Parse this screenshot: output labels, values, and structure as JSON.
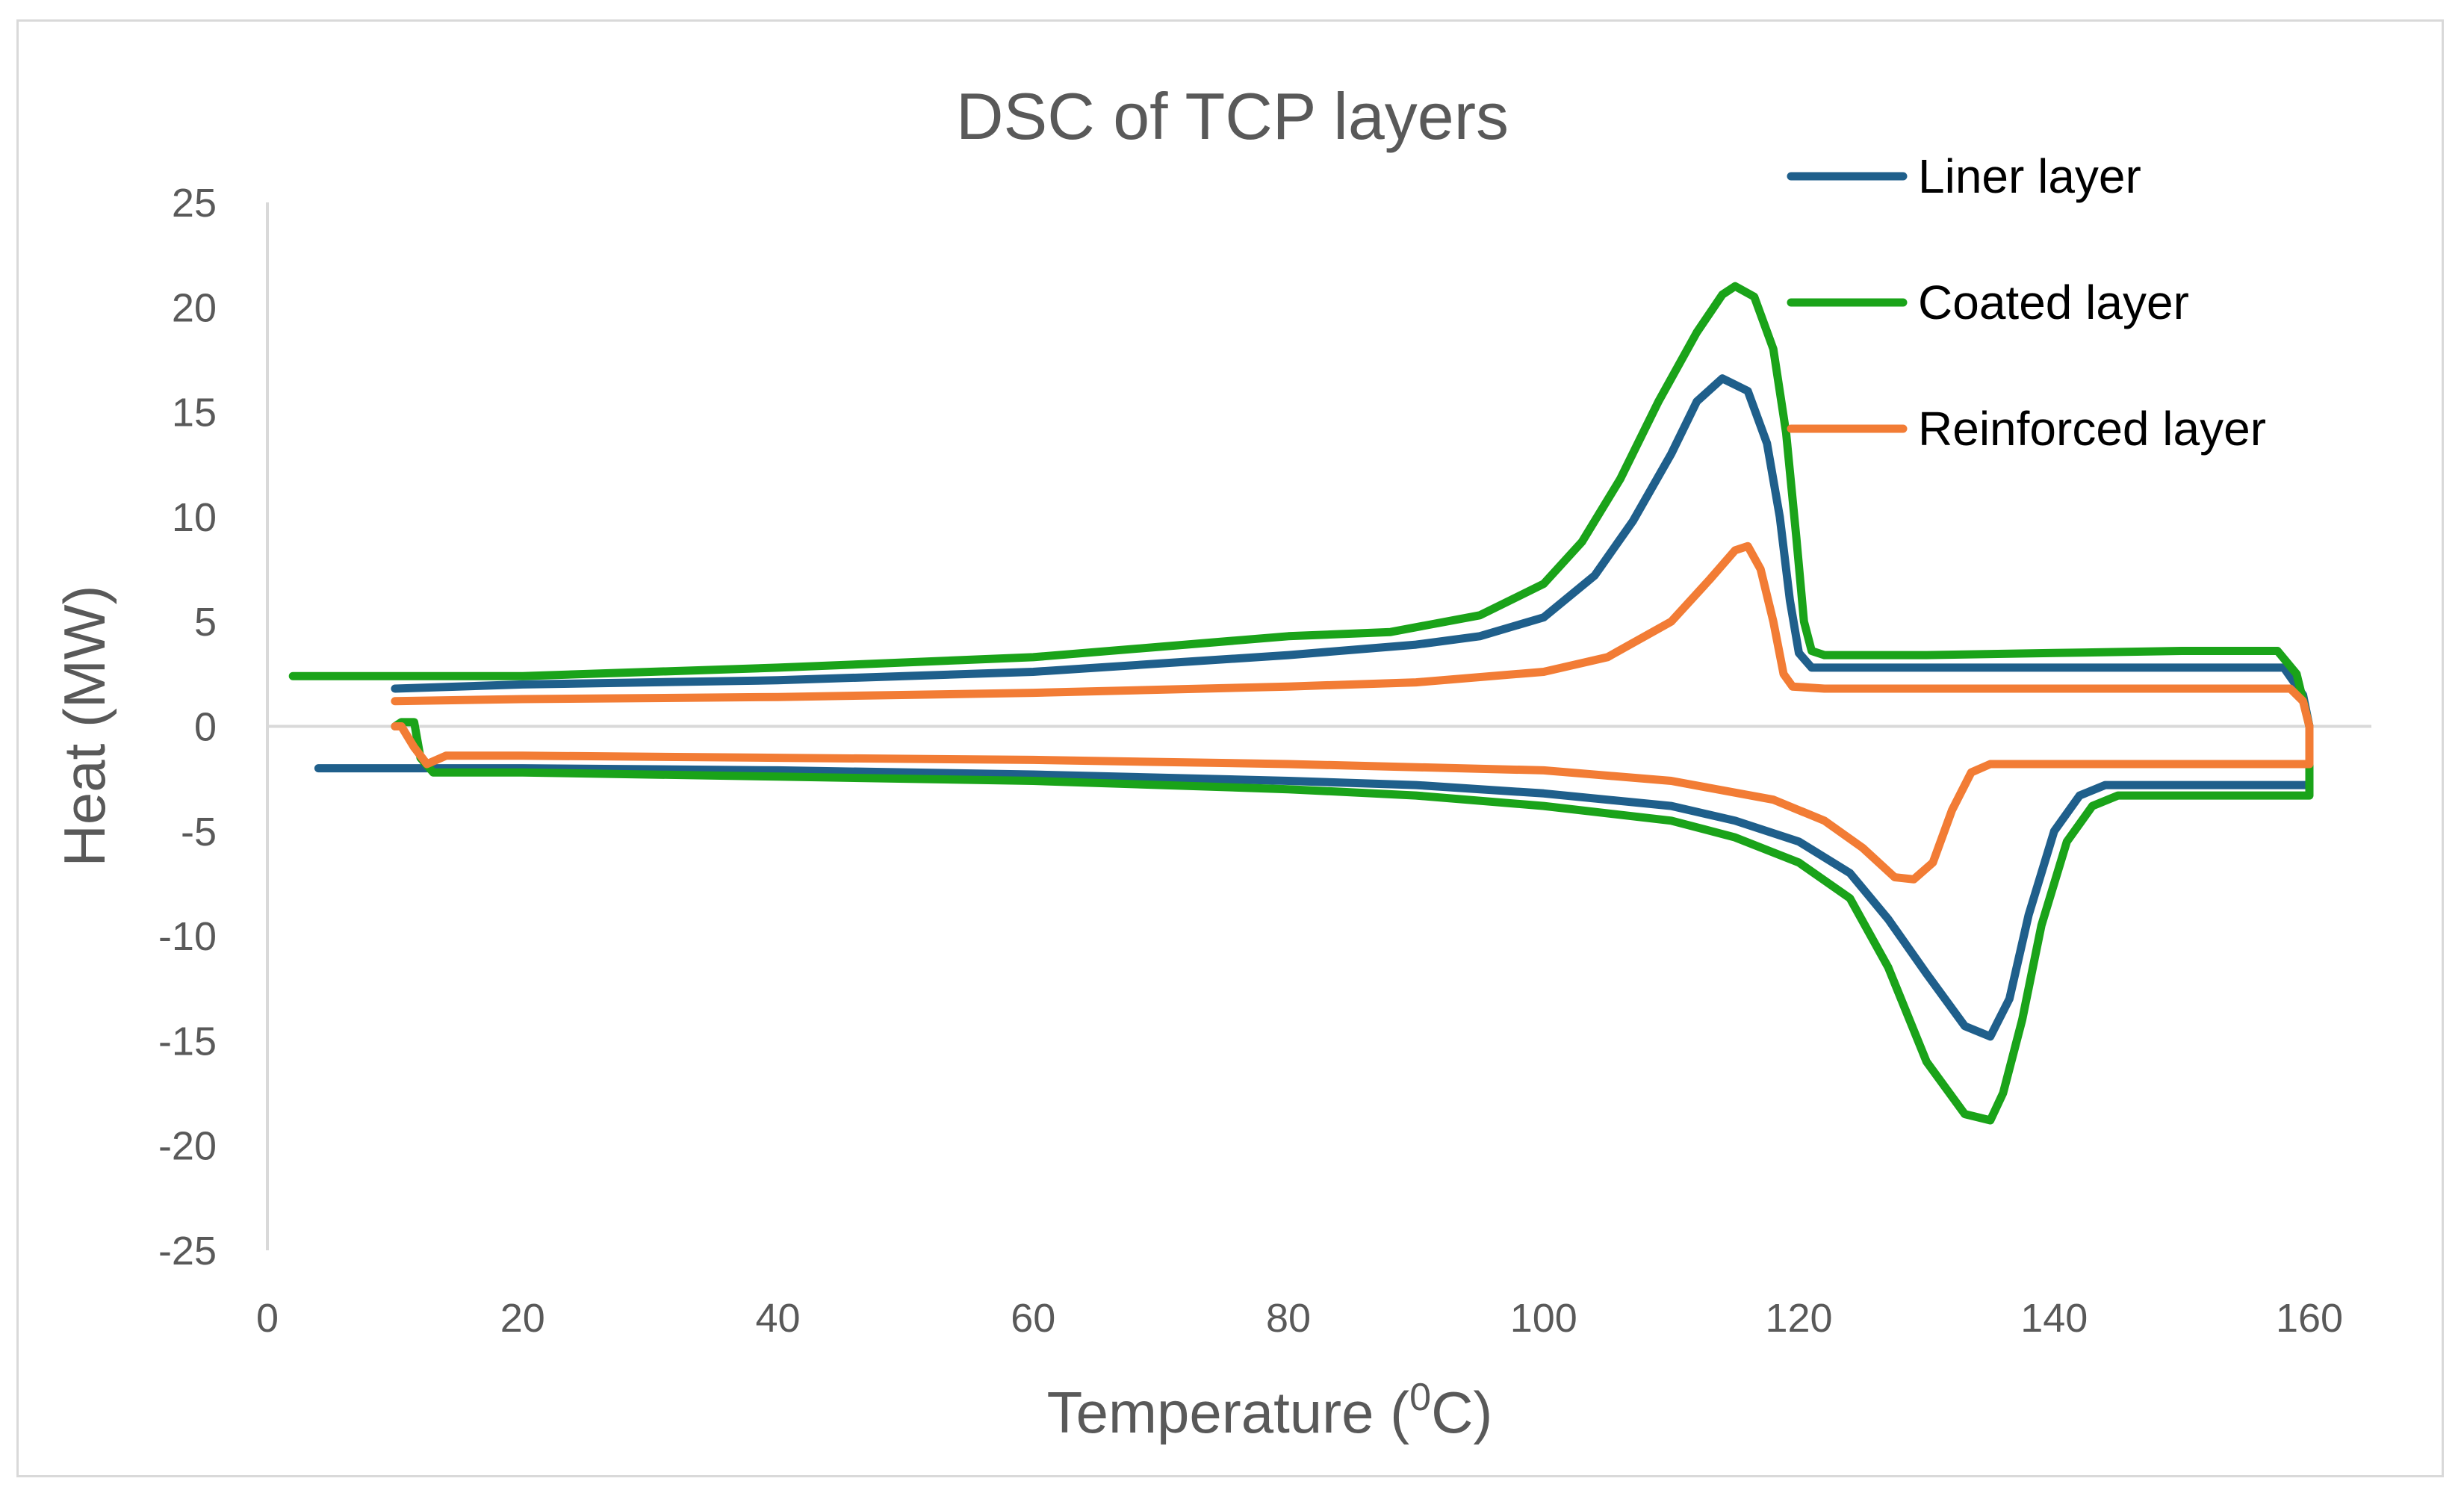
{
  "chart_data": {
    "type": "line",
    "title": "DSC of TCP layers",
    "xlabel_main": "Temperature (",
    "xlabel_sup": "0",
    "xlabel_end": "C)",
    "ylabel": "Heat (MW)",
    "xlim": [
      0,
      160
    ],
    "ylim": [
      -25,
      25
    ],
    "x_ticks": [
      0,
      20,
      40,
      60,
      80,
      100,
      120,
      140,
      160
    ],
    "y_ticks": [
      25,
      20,
      15,
      10,
      5,
      0,
      -5,
      -10,
      -15,
      -20,
      -25
    ],
    "x_tick_labels": [
      "0",
      "20",
      "40",
      "60",
      "80",
      "100",
      "120",
      "140",
      "160"
    ],
    "y_tick_labels": [
      "25",
      "20",
      "15",
      "10",
      "5",
      "0",
      "-5",
      "-10",
      "-15",
      "-20",
      "-25"
    ],
    "legend_position": "top-right",
    "series": [
      {
        "name": "Liner layer",
        "color": "#1f5f8b",
        "segments": [
          [
            [
              10,
              1.8
            ],
            [
              20,
              2.0
            ],
            [
              40,
              2.2
            ],
            [
              60,
              2.6
            ],
            [
              70,
              3.0
            ],
            [
              80,
              3.4
            ],
            [
              90,
              3.9
            ],
            [
              95,
              4.3
            ],
            [
              100,
              5.2
            ],
            [
              104,
              7.2
            ],
            [
              107,
              9.8
            ],
            [
              110,
              13.0
            ],
            [
              112,
              15.5
            ],
            [
              114,
              16.6
            ],
            [
              116,
              16.0
            ],
            [
              117.5,
              13.5
            ],
            [
              118.5,
              10.0
            ],
            [
              119.3,
              6.0
            ],
            [
              120,
              3.5
            ],
            [
              121,
              2.8
            ],
            [
              130,
              2.8
            ],
            [
              140,
              2.8
            ],
            [
              150,
              2.8
            ],
            [
              158,
              2.8
            ],
            [
              159.5,
              1.5
            ],
            [
              160,
              0.0
            ]
          ],
          [
            [
              160,
              0.0
            ],
            [
              160,
              -2.8
            ],
            [
              150,
              -2.8
            ],
            [
              144,
              -2.8
            ],
            [
              142,
              -3.3
            ],
            [
              140,
              -5.0
            ],
            [
              138,
              -9.0
            ],
            [
              136.5,
              -13.0
            ],
            [
              135,
              -14.8
            ],
            [
              133,
              -14.3
            ],
            [
              130,
              -11.8
            ],
            [
              127,
              -9.2
            ],
            [
              124,
              -7.0
            ],
            [
              120,
              -5.5
            ],
            [
              115,
              -4.5
            ],
            [
              110,
              -3.8
            ],
            [
              100,
              -3.2
            ],
            [
              90,
              -2.8
            ],
            [
              80,
              -2.6
            ],
            [
              60,
              -2.3
            ],
            [
              40,
              -2.1
            ],
            [
              20,
              -2.0
            ],
            [
              10,
              -2.0
            ],
            [
              4,
              -2.0
            ]
          ]
        ]
      },
      {
        "name": "Coated layer",
        "color": "#1aa319",
        "segments": [
          [
            [
              2,
              2.4
            ],
            [
              20,
              2.4
            ],
            [
              40,
              2.8
            ],
            [
              60,
              3.3
            ],
            [
              70,
              3.8
            ],
            [
              80,
              4.3
            ],
            [
              88,
              4.5
            ],
            [
              95,
              5.3
            ],
            [
              100,
              6.8
            ],
            [
              103,
              8.8
            ],
            [
              106,
              11.8
            ],
            [
              109,
              15.5
            ],
            [
              112,
              18.8
            ],
            [
              114,
              20.6
            ],
            [
              115,
              21.0
            ],
            [
              116.5,
              20.5
            ],
            [
              118,
              18.0
            ],
            [
              119,
              14.0
            ],
            [
              119.8,
              9.0
            ],
            [
              120.4,
              5.0
            ],
            [
              121,
              3.6
            ],
            [
              122,
              3.4
            ],
            [
              130,
              3.4
            ],
            [
              140,
              3.5
            ],
            [
              150,
              3.6
            ],
            [
              157.5,
              3.6
            ],
            [
              159,
              2.5
            ],
            [
              160,
              0.0
            ]
          ],
          [
            [
              160,
              0.0
            ],
            [
              160,
              -3.3
            ],
            [
              150,
              -3.3
            ],
            [
              145,
              -3.3
            ],
            [
              143,
              -3.8
            ],
            [
              141,
              -5.5
            ],
            [
              139,
              -9.5
            ],
            [
              137.5,
              -14.0
            ],
            [
              136,
              -17.5
            ],
            [
              135,
              -18.8
            ],
            [
              133,
              -18.5
            ],
            [
              130,
              -16.0
            ],
            [
              127,
              -11.5
            ],
            [
              124,
              -8.2
            ],
            [
              120,
              -6.5
            ],
            [
              115,
              -5.3
            ],
            [
              110,
              -4.5
            ],
            [
              100,
              -3.8
            ],
            [
              90,
              -3.3
            ],
            [
              80,
              -3.0
            ],
            [
              60,
              -2.6
            ],
            [
              40,
              -2.4
            ],
            [
              20,
              -2.2
            ],
            [
              13,
              -2.2
            ],
            [
              12,
              -1.5
            ],
            [
              11.5,
              0.2
            ],
            [
              10.5,
              0.2
            ],
            [
              10,
              0.0
            ]
          ]
        ]
      },
      {
        "name": "Reinforced layer",
        "color": "#f27c35",
        "segments": [
          [
            [
              10,
              1.2
            ],
            [
              20,
              1.3
            ],
            [
              40,
              1.4
            ],
            [
              60,
              1.6
            ],
            [
              80,
              1.9
            ],
            [
              90,
              2.1
            ],
            [
              100,
              2.6
            ],
            [
              105,
              3.3
            ],
            [
              110,
              5.0
            ],
            [
              113,
              7.0
            ],
            [
              115,
              8.4
            ],
            [
              116,
              8.6
            ],
            [
              117,
              7.5
            ],
            [
              118,
              5.0
            ],
            [
              118.8,
              2.5
            ],
            [
              119.5,
              1.9
            ],
            [
              122,
              1.8
            ],
            [
              130,
              1.8
            ],
            [
              140,
              1.8
            ],
            [
              150,
              1.8
            ],
            [
              157,
              1.8
            ],
            [
              158.5,
              1.8
            ],
            [
              159.5,
              1.2
            ],
            [
              160,
              0.0
            ]
          ],
          [
            [
              160,
              0.0
            ],
            [
              160,
              -1.8
            ],
            [
              150,
              -1.8
            ],
            [
              140,
              -1.8
            ],
            [
              135,
              -1.8
            ],
            [
              133.5,
              -2.2
            ],
            [
              132,
              -4.0
            ],
            [
              130.5,
              -6.5
            ],
            [
              129,
              -7.3
            ],
            [
              127.5,
              -7.2
            ],
            [
              125,
              -5.8
            ],
            [
              122,
              -4.5
            ],
            [
              118,
              -3.5
            ],
            [
              110,
              -2.6
            ],
            [
              100,
              -2.1
            ],
            [
              80,
              -1.8
            ],
            [
              60,
              -1.6
            ],
            [
              40,
              -1.5
            ],
            [
              20,
              -1.4
            ],
            [
              14,
              -1.4
            ],
            [
              12.5,
              -1.8
            ],
            [
              11.5,
              -1.0
            ],
            [
              10.5,
              0.0
            ],
            [
              10,
              0.0
            ]
          ]
        ]
      }
    ]
  }
}
